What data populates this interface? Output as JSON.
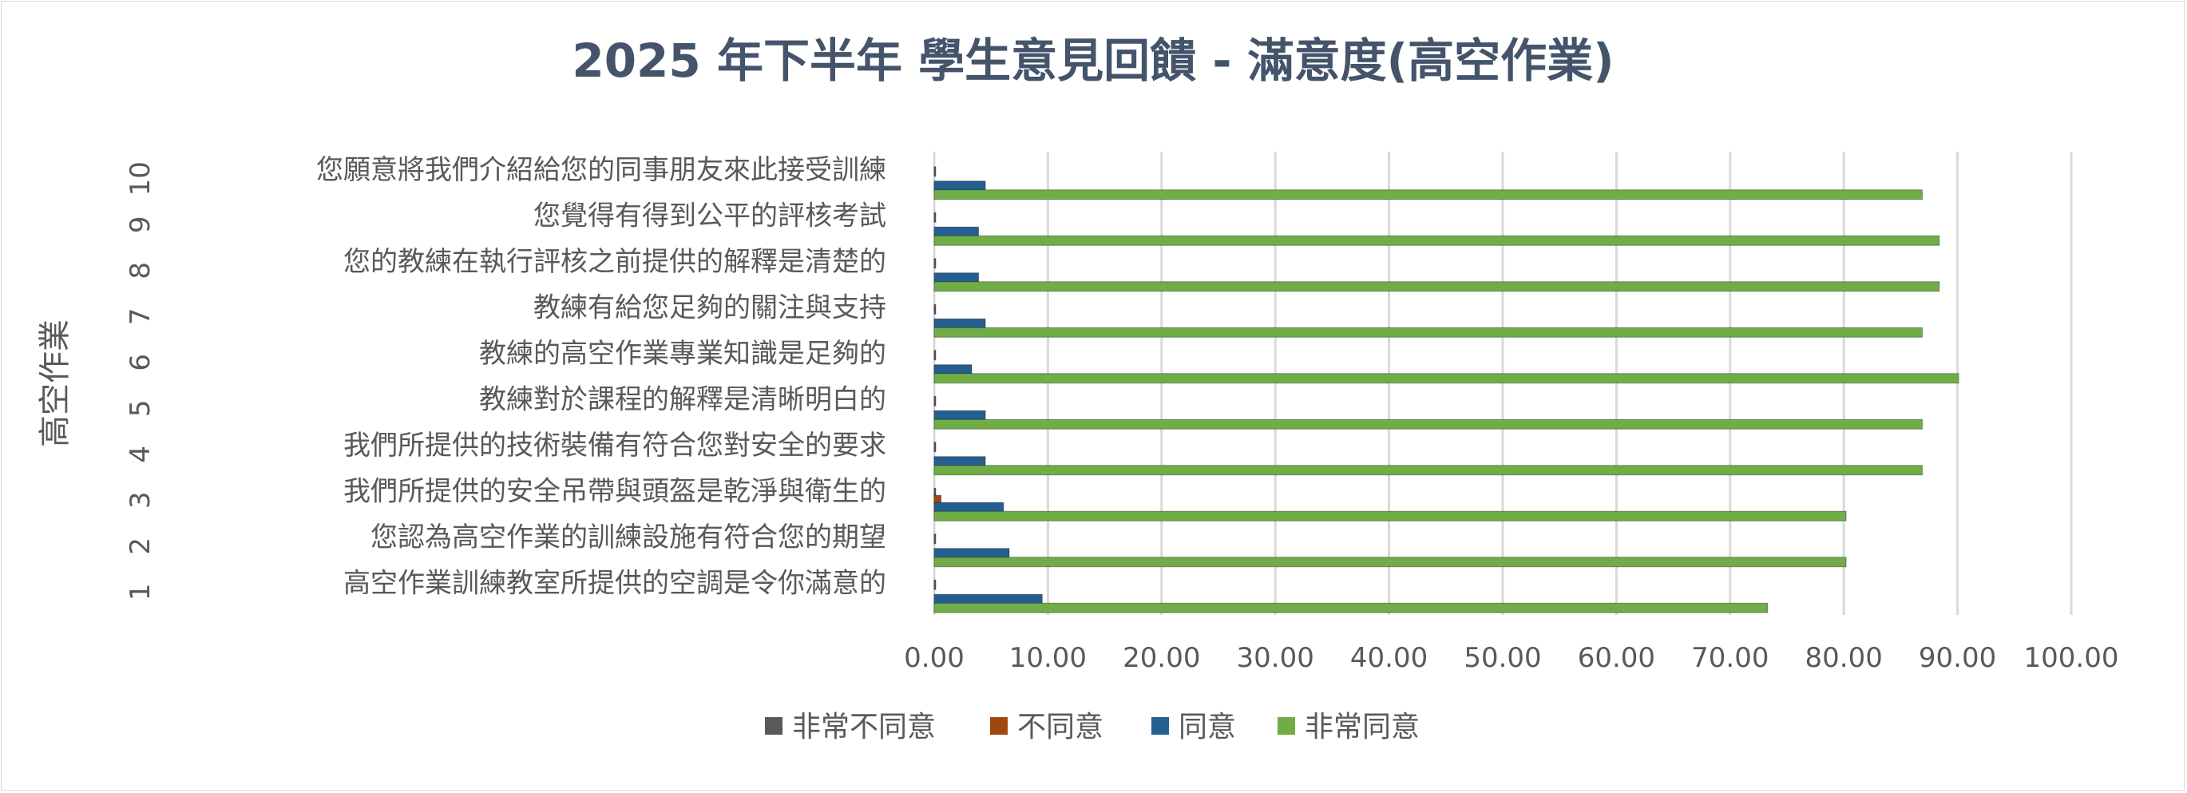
{
  "chart_data": {
    "type": "bar",
    "orientation": "horizontal",
    "title": "2025 年下半年 學生意見回饋 - 滿意度(高空作業)",
    "ylabel": "高空作業",
    "xlim": [
      0,
      100
    ],
    "xticks": [
      "0.00",
      "10.00",
      "20.00",
      "30.00",
      "40.00",
      "50.00",
      "60.00",
      "70.00",
      "80.00",
      "90.00",
      "100.00"
    ],
    "grid": true,
    "legend_position": "bottom",
    "categories": [
      {
        "num": "1",
        "label": "高空作業訓練教室所提供的空調是令你滿意的"
      },
      {
        "num": "2",
        "label": "您認為高空作業的訓練設施有符合您的期望"
      },
      {
        "num": "3",
        "label": "我們所提供的安全吊帶與頭盔是乾淨與衛生的"
      },
      {
        "num": "4",
        "label": "我們所提供的技術裝備有符合您對安全的要求"
      },
      {
        "num": "5",
        "label": "教練對於課程的解釋是清晰明白的"
      },
      {
        "num": "6",
        "label": "教練的高空作業專業知識是足夠的"
      },
      {
        "num": "7",
        "label": "教練有給您足夠的關注與支持"
      },
      {
        "num": "8",
        "label": "您的教練在執行評核之前提供的解釋是清楚的"
      },
      {
        "num": "9",
        "label": "您覺得有得到公平的評核考試"
      },
      {
        "num": "10",
        "label": "您願意將我們介紹給您的同事朋友來此接受訓練"
      }
    ],
    "series": [
      {
        "name": "非常不同意",
        "color": "#595959",
        "values": [
          0.1,
          0.1,
          0.1,
          0.1,
          0.1,
          0.1,
          0.1,
          0.1,
          0.1,
          0.1
        ]
      },
      {
        "name": "不同意",
        "color": "#9e480e",
        "values": [
          0,
          0,
          0.6,
          0,
          0,
          0,
          0,
          0,
          0,
          0
        ]
      },
      {
        "name": "同意",
        "color": "#255e91",
        "values": [
          9.5,
          6.6,
          6.1,
          4.5,
          4.5,
          3.3,
          4.5,
          3.9,
          3.9,
          4.5
        ]
      },
      {
        "name": "非常同意",
        "color": "#70ad47",
        "values": [
          73.3,
          80.2,
          80.2,
          86.9,
          86.9,
          90.1,
          86.9,
          88.4,
          88.4,
          86.9
        ]
      }
    ]
  }
}
